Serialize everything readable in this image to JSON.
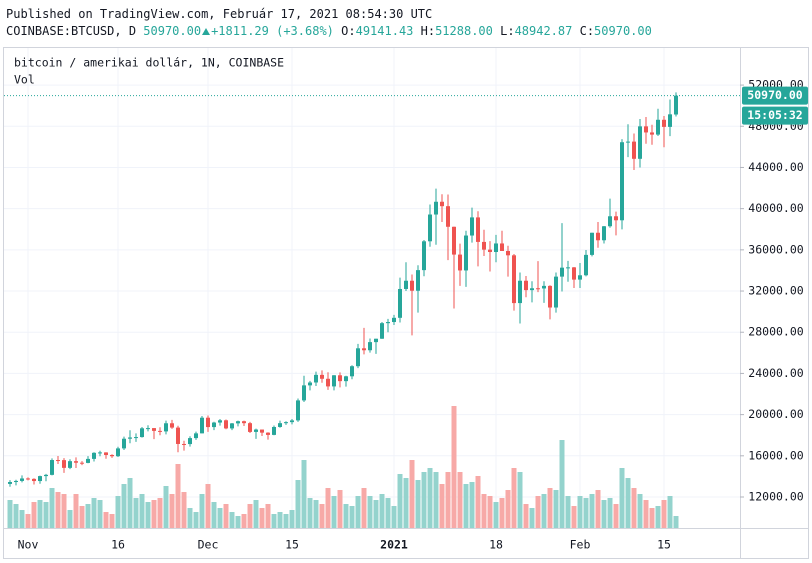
{
  "header": {
    "published": "Published on TradingView.com, Február 17, 2021 08:54:30 UTC",
    "symbol": "COINBASE:BTCUSD, D",
    "last": "50970.00",
    "change": "+1811.29 (+3.68%)",
    "o_label": "O:",
    "open": "49141.43",
    "h_label": "H:",
    "high": "51288.00",
    "l_label": "L:",
    "low": "48942.87",
    "c_label": "C:",
    "close": "50970.00"
  },
  "chart_data": {
    "type": "candlestick",
    "title": "bitcoin / amerikai dollár, 1N, COINBASE",
    "volume_label": "Vol",
    "categories": [
      null,
      null,
      null,
      "Nov",
      null,
      null,
      null,
      null,
      null,
      null,
      null,
      null,
      null,
      null,
      null,
      null,
      null,
      null,
      "16",
      null,
      null,
      null,
      null,
      null,
      null,
      null,
      null,
      null,
      null,
      null,
      null,
      null,
      null,
      "Dec",
      null,
      null,
      null,
      null,
      null,
      null,
      null,
      null,
      null,
      null,
      null,
      null,
      null,
      "15",
      null,
      null,
      null,
      null,
      null,
      null,
      null,
      null,
      null,
      null,
      null,
      null,
      null,
      null,
      null,
      null,
      "2021",
      null,
      null,
      null,
      null,
      null,
      null,
      null,
      null,
      null,
      null,
      null,
      null,
      null,
      null,
      null,
      null,
      "18",
      null,
      null,
      null,
      null,
      null,
      null,
      null,
      null,
      null,
      null,
      null,
      null,
      null,
      "Feb",
      null,
      null,
      null,
      null,
      null,
      null,
      null,
      null,
      null,
      null,
      null,
      null,
      null,
      "15",
      null,
      null
    ],
    "open": [
      13270,
      13455,
      13560,
      13800,
      13760,
      13550,
      14030,
      14150,
      15590,
      15580,
      14830,
      15480,
      15330,
      15310,
      15700,
      16290,
      16330,
      16080,
      15960,
      16720,
      17660,
      17780,
      17820,
      18670,
      18690,
      18420,
      18370,
      19160,
      18740,
      17150,
      17140,
      17720,
      18180,
      19700,
      18790,
      19230,
      19450,
      18660,
      19150,
      19360,
      19170,
      18320,
      18550,
      18250,
      18030,
      18800,
      19170,
      19270,
      19440,
      21380,
      22840,
      23120,
      23860,
      23480,
      22740,
      23820,
      23250,
      23720,
      24700,
      26440,
      26250,
      27040,
      27370,
      28880,
      28990,
      29400,
      32200,
      33000,
      32030,
      34030,
      36830,
      39430,
      40670,
      40240,
      38240,
      35540,
      34000,
      37390,
      39150,
      36770,
      36020,
      35790,
      36620,
      35890,
      35470,
      30830,
      33000,
      32090,
      32270,
      32250,
      32500,
      30400,
      33400,
      34270,
      34300,
      33110,
      33530,
      35510,
      37660,
      36930,
      38290,
      39260,
      38870,
      46450,
      46510,
      44840,
      47990,
      47400,
      47190,
      48630,
      47940,
      49141.43
    ],
    "high": [
      13640,
      13680,
      14100,
      13900,
      13820,
      14070,
      14250,
      15750,
      15980,
      15770,
      15660,
      15850,
      15480,
      15970,
      16340,
      16490,
      16350,
      16150,
      16880,
      17860,
      18480,
      18180,
      18800,
      18970,
      18700,
      18770,
      19420,
      19490,
      18920,
      17460,
      17900,
      18350,
      19870,
      19920,
      19310,
      19570,
      19520,
      19180,
      19420,
      19420,
      19300,
      18640,
      18560,
      18290,
      18940,
      19420,
      19350,
      19580,
      21560,
      23780,
      23280,
      24170,
      24300,
      24120,
      23840,
      24100,
      23780,
      24790,
      26870,
      28420,
      27390,
      27370,
      28990,
      29300,
      29680,
      33300,
      34800,
      33600,
      34500,
      36950,
      40400,
      41950,
      41400,
      41380,
      38250,
      36600,
      37850,
      40100,
      39750,
      37950,
      36850,
      37450,
      37850,
      36400,
      35600,
      33800,
      33460,
      32950,
      34900,
      32950,
      32560,
      33800,
      38600,
      34930,
      34330,
      34720,
      35980,
      37660,
      38700,
      38320,
      40970,
      39710,
      46750,
      48200,
      47300,
      48700,
      48900,
      48150,
      49700,
      49000,
      50600,
      51288
    ],
    "low": [
      13000,
      13130,
      13420,
      13620,
      13220,
      13290,
      13530,
      14100,
      15200,
      14340,
      14710,
      14820,
      15100,
      15280,
      15450,
      15960,
      15720,
      15800,
      15880,
      16570,
      17220,
      17350,
      17760,
      18370,
      17620,
      18000,
      18080,
      18610,
      16350,
      16500,
      16890,
      17550,
      18180,
      18330,
      18500,
      18930,
      18580,
      18500,
      18860,
      18900,
      18210,
      17650,
      17920,
      17570,
      18000,
      18720,
      19000,
      19050,
      19290,
      21230,
      22350,
      22780,
      23090,
      22400,
      22360,
      22650,
      22720,
      23440,
      24510,
      25850,
      26020,
      25900,
      27350,
      28000,
      28700,
      28950,
      32000,
      27700,
      29900,
      33440,
      36300,
      36500,
      38700,
      35000,
      30300,
      32500,
      32400,
      36700,
      34400,
      35400,
      33900,
      34800,
      35900,
      33400,
      30100,
      28850,
      31400,
      30900,
      31900,
      30850,
      29250,
      29900,
      31950,
      32900,
      32300,
      32300,
      33420,
      35370,
      36200,
      36620,
      38150,
      37400,
      37990,
      45000,
      43750,
      43990,
      46300,
      46200,
      47050,
      45960,
      47040,
      48942.87
    ],
    "close": [
      13455,
      13560,
      13800,
      13760,
      13550,
      14030,
      14150,
      15590,
      15580,
      14830,
      15480,
      15330,
      15310,
      15700,
      16290,
      16330,
      16080,
      15960,
      16720,
      17660,
      17780,
      17820,
      18670,
      18690,
      18420,
      18370,
      19160,
      18740,
      17150,
      17140,
      17720,
      18180,
      19700,
      18790,
      19230,
      19450,
      18660,
      19150,
      19360,
      19170,
      18320,
      18550,
      18250,
      18030,
      18800,
      19170,
      19270,
      19440,
      21380,
      22840,
      23120,
      23860,
      23480,
      22740,
      23820,
      23250,
      23720,
      24700,
      26440,
      26250,
      27040,
      27370,
      28880,
      28990,
      29400,
      32200,
      33000,
      32030,
      34030,
      36830,
      39430,
      40670,
      40240,
      38240,
      35540,
      34000,
      37390,
      39150,
      36770,
      36020,
      35790,
      36620,
      35890,
      35470,
      30830,
      33000,
      32090,
      32270,
      32250,
      32500,
      30400,
      33400,
      34270,
      34300,
      33110,
      33530,
      35510,
      37660,
      36930,
      38290,
      39260,
      38870,
      46450,
      46510,
      44840,
      47990,
      47400,
      47190,
      48630,
      47940,
      49158.71,
      50970
    ],
    "volume": [
      14000,
      12000,
      9000,
      7000,
      13000,
      14000,
      13000,
      20000,
      18000,
      17000,
      9000,
      17000,
      11000,
      12000,
      15000,
      14000,
      8000,
      7000,
      16000,
      22000,
      25000,
      15000,
      17000,
      13000,
      14000,
      15000,
      21000,
      17000,
      32000,
      18000,
      10000,
      8000,
      17000,
      22000,
      13000,
      10000,
      12000,
      8000,
      6000,
      7000,
      12000,
      14000,
      10000,
      12000,
      7000,
      8000,
      7000,
      9000,
      24000,
      34000,
      15000,
      14000,
      12000,
      20000,
      16000,
      19000,
      12000,
      11000,
      16000,
      20000,
      16000,
      14000,
      17000,
      15000,
      11000,
      27000,
      25000,
      34000,
      24000,
      28000,
      30000,
      28000,
      22000,
      28000,
      61000,
      28000,
      22000,
      23000,
      26000,
      17000,
      16000,
      13000,
      15000,
      19000,
      30000,
      28000,
      12000,
      10000,
      16000,
      17000,
      20000,
      19000,
      44000,
      16000,
      11000,
      16000,
      15000,
      17000,
      19000,
      14000,
      15000,
      12000,
      30000,
      25000,
      20000,
      17000,
      14000,
      10000,
      11000,
      14000,
      16000,
      6000
    ],
    "up_color": "#26a69a",
    "down_color": "#ef5350",
    "up_volume_color": "#94d3cd",
    "down_volume_color": "#f7a9a7",
    "ylim": [
      8990,
      55600
    ],
    "yticks": [
      {
        "value": 12000,
        "label": "12000.00"
      },
      {
        "value": 16000,
        "label": "16000.00"
      },
      {
        "value": 20000,
        "label": "20000.00"
      },
      {
        "value": 24000,
        "label": "24000.00"
      },
      {
        "value": 28000,
        "label": "28000.00"
      },
      {
        "value": 32000,
        "label": "32000.00"
      },
      {
        "value": 36000,
        "label": "36000.00"
      },
      {
        "value": 40000,
        "label": "40000.00"
      },
      {
        "value": 44000,
        "label": "44000.00"
      },
      {
        "value": 48000,
        "label": "48000.00"
      },
      {
        "value": 52000,
        "label": "52000.00"
      }
    ],
    "last_price": {
      "value": 50970,
      "label": "50970.00"
    },
    "countdown": "15:05:32",
    "grid": true
  }
}
